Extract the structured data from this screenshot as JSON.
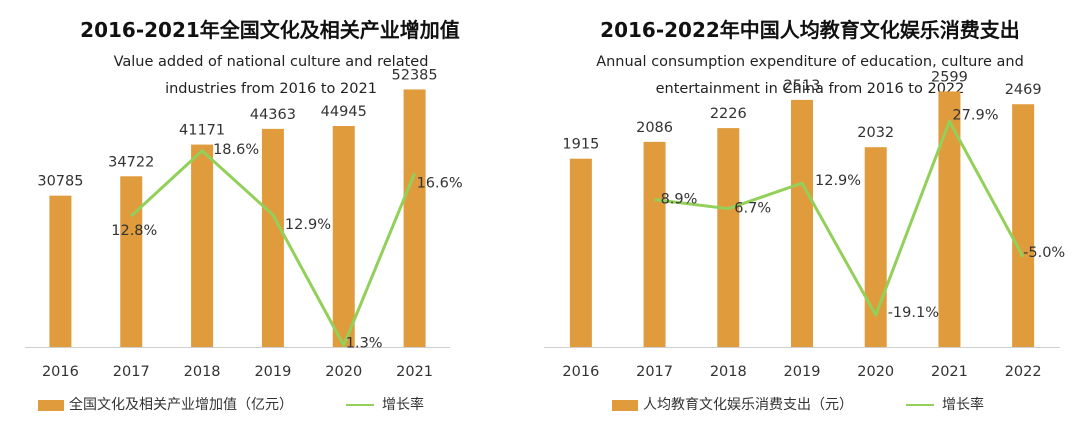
{
  "chart_data": [
    {
      "type": "bar",
      "title": "2016-2021年全国文化及相关产业增加值",
      "subtitle": "Value added of national culture and related industries from 2016 to 2021",
      "subtitle_lines": [
        "Value added of national culture and related",
        "industries from 2016 to 2021"
      ],
      "categories": [
        "2016",
        "2017",
        "2018",
        "2019",
        "2020",
        "2021"
      ],
      "series": [
        {
          "name": "全国文化及相关产业增加值（亿元）",
          "type": "bar",
          "values": [
            30785,
            34722,
            41171,
            44363,
            44945,
            52385
          ],
          "labels": [
            "30785",
            "34722",
            "41171",
            "44363",
            "44945",
            "52385"
          ]
        },
        {
          "name": "增长率",
          "type": "line",
          "values": [
            null,
            12.8,
            18.6,
            12.9,
            1.3,
            16.6
          ],
          "labels": [
            "",
            "12.8%",
            "18.6%",
            "12.9%",
            "1.3%",
            "16.6%"
          ]
        }
      ],
      "ylim_bar": [
        0,
        60000
      ],
      "ylim_line": [
        0,
        24
      ],
      "colors": {
        "bar": "#E09B3D",
        "line": "#92D05A"
      },
      "grid": false,
      "legend": "bottom"
    },
    {
      "type": "bar",
      "title": "2016-2022年中国人均教育文化娱乐消费支出",
      "subtitle": "Annual consumption expenditure of education, culture and entertainment in China from 2016 to 2022",
      "subtitle_lines": [
        "Annual consumption expenditure of education, culture and",
        "entertainment in China from 2016 to 2022"
      ],
      "categories": [
        "2016",
        "2017",
        "2018",
        "2019",
        "2020",
        "2021",
        "2022"
      ],
      "series": [
        {
          "name": "人均教育文化娱乐消费支出（元）",
          "type": "bar",
          "values": [
            1915,
            2086,
            2226,
            2513,
            2032,
            2599,
            2469
          ],
          "labels": [
            "1915",
            "2086",
            "2226",
            "2513",
            "2032",
            "2599",
            "2469"
          ]
        },
        {
          "name": "增长率",
          "type": "line",
          "values": [
            null,
            8.9,
            6.7,
            12.9,
            -19.1,
            27.9,
            -5.0
          ],
          "labels": [
            "",
            "8.9%",
            "6.7%",
            "12.9%",
            "-19.1%",
            "27.9%",
            "-5.0%"
          ]
        }
      ],
      "ylim_bar": [
        0,
        3000
      ],
      "ylim_line": [
        -30,
        35
      ],
      "colors": {
        "bar": "#E09B3D",
        "line": "#92D05A"
      },
      "grid": false,
      "legend": "bottom"
    }
  ]
}
